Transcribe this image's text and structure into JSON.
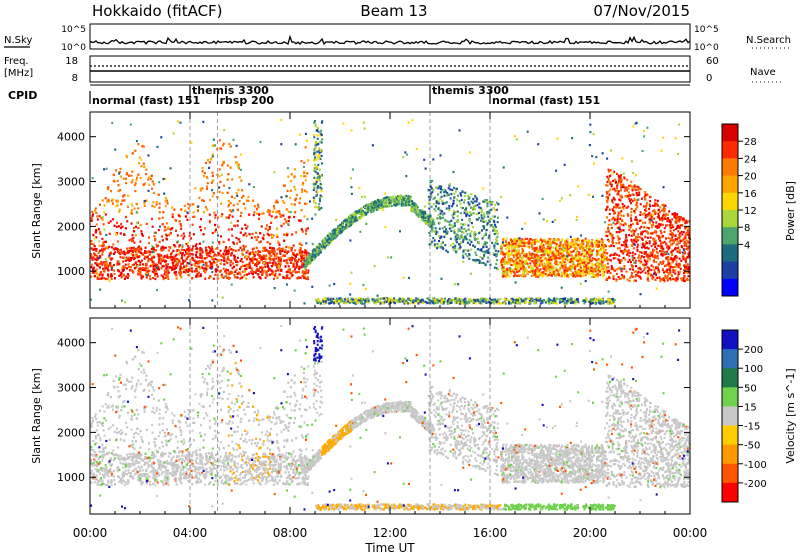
{
  "header": {
    "site": "Hokkaido (fitACF)",
    "beam": "Beam 13",
    "date": "07/Nov/2015"
  },
  "noise_panel": {
    "left_label": "N.Sky",
    "right_label": "N.Search",
    "left_ticks": [
      "10^5",
      "10^0"
    ],
    "right_ticks": [
      "10^5",
      "10^0"
    ]
  },
  "freq_panel": {
    "left_label_1": "Freq.",
    "left_label_2": "[MHz]",
    "left_ticks": [
      "18",
      "8"
    ],
    "right_label": "Nave",
    "right_ticks": [
      "60",
      "0"
    ]
  },
  "cpid_panel": {
    "label": "CPID",
    "modes": [
      {
        "label": "normal (fast) 151",
        "start_hour": 0,
        "row": "lower"
      },
      {
        "label": "themis 3300",
        "start_hour": 4,
        "row": "upper"
      },
      {
        "label": "rbsp 200",
        "start_hour": 5.1,
        "row": "lower"
      },
      {
        "label": "themis 3300",
        "start_hour": 13.6,
        "row": "upper"
      },
      {
        "label": "normal (fast) 151",
        "start_hour": 16,
        "row": "lower"
      }
    ]
  },
  "x_axis": {
    "title": "Time UT",
    "ticks": [
      "00:00",
      "04:00",
      "08:00",
      "12:00",
      "16:00",
      "20:00",
      "00:00"
    ],
    "range_hours": [
      0,
      24
    ]
  },
  "chart_data": [
    {
      "type": "heatmap",
      "panel": "power",
      "ylabel": "Slant Range [km]",
      "yticks": [
        1000,
        2000,
        3000,
        4000
      ],
      "ylim": [
        180,
        4550
      ],
      "colorbar": {
        "label": "Power [dB]",
        "ticks": [
          "28",
          "24",
          "20",
          "16",
          "12",
          "8",
          "4"
        ],
        "colors": [
          "#d90000",
          "#ff2a00",
          "#ff7b00",
          "#ffa500",
          "#ffd700",
          "#a9d63a",
          "#4ca56b",
          "#1b6c7e",
          "#1c3fa3",
          "#0000ff"
        ]
      }
    },
    {
      "type": "heatmap",
      "panel": "velocity",
      "ylabel": "Slant Range [km]",
      "yticks": [
        1000,
        2000,
        3000,
        4000
      ],
      "ylim": [
        180,
        4550
      ],
      "colorbar": {
        "label": "Velocity [m s^-1]",
        "ticks": [
          "200",
          "100",
          "50",
          "15",
          "-15",
          "-50",
          "-100",
          "-200"
        ],
        "colors": [
          "#1010c0",
          "#2d6fb4",
          "#1f7a4a",
          "#6fd14c",
          "#c8c8c8",
          "#ffcc00",
          "#ff9900",
          "#ff5500",
          "#ff0000"
        ]
      }
    }
  ]
}
